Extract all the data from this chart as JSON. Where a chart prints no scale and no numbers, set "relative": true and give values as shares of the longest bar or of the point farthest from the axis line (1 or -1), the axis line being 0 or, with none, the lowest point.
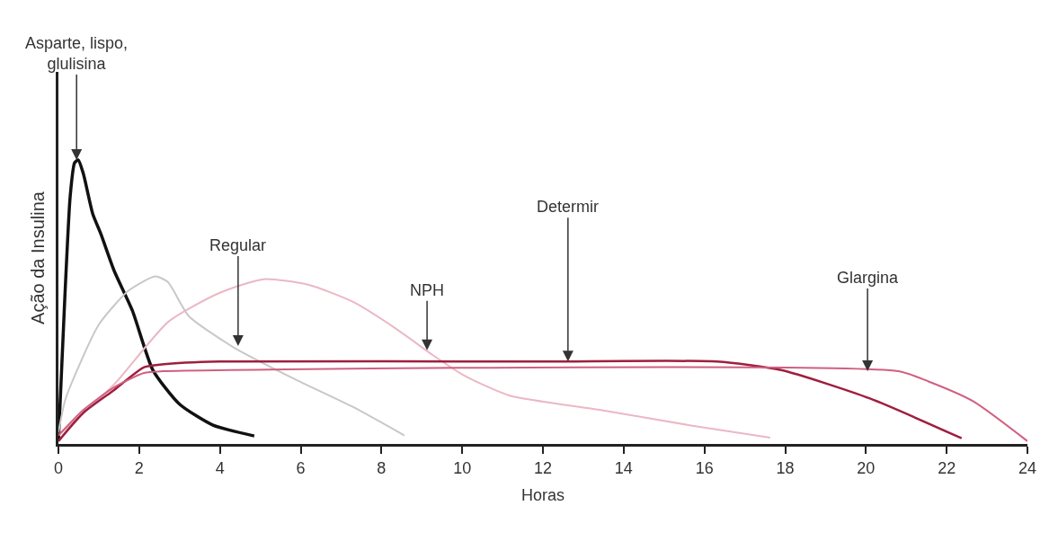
{
  "chart_data": {
    "type": "line",
    "relative": true,
    "xlabel": "Horas",
    "ylabel": "Ação da Insulina",
    "xlim": [
      0,
      24
    ],
    "xticks": [
      0,
      2,
      4,
      6,
      8,
      10,
      12,
      14,
      16,
      18,
      20,
      22,
      24
    ],
    "marker": "none",
    "line_style": "solid",
    "series": [
      {
        "color": "#111111",
        "x": [
          0,
          0.16,
          0.29,
          0.4,
          0.49,
          0.62,
          0.85,
          1.05,
          1.38,
          1.83,
          2.34,
          3.0,
          3.83,
          4.85
        ],
        "values": [
          0.01,
          0.52,
          0.87,
          0.99,
          1.0,
          0.95,
          0.81,
          0.74,
          0.61,
          0.47,
          0.26,
          0.14,
          0.066,
          0.028
        ]
      },
      {
        "color": "#c8c8c8",
        "x": [
          0,
          0.18,
          1.0,
          1.74,
          2.4,
          2.71,
          3.23,
          4.34,
          5.83,
          7.3,
          8.57
        ],
        "values": [
          0.04,
          0.16,
          0.42,
          0.54,
          0.59,
          0.57,
          0.45,
          0.34,
          0.23,
          0.13,
          0.03
        ]
      },
      {
        "color": "#eab8c4",
        "x": [
          0,
          1.38,
          2.72,
          3.96,
          5.08,
          6.2,
          7.3,
          8.42,
          9.3,
          10.06,
          11.18,
          13.4,
          15.63,
          17.63
        ],
        "values": [
          0.03,
          0.21,
          0.43,
          0.53,
          0.58,
          0.56,
          0.5,
          0.4,
          0.31,
          0.24,
          0.17,
          0.12,
          0.066,
          0.022
        ]
      },
      {
        "color": "#9e1f3e",
        "x": [
          0,
          0.62,
          1.38,
          2.12,
          2.56,
          4,
          12,
          16.3,
          17.9,
          20.1,
          22.37
        ],
        "values": [
          0.01,
          0.11,
          0.19,
          0.27,
          0.28,
          0.29,
          0.29,
          0.29,
          0.26,
          0.16,
          0.02
        ]
      },
      {
        "color": "#d06080",
        "x": [
          0,
          0.62,
          1.38,
          2.12,
          2.56,
          20.8,
          21.55,
          22.66,
          24
        ],
        "values": [
          0.03,
          0.12,
          0.2,
          0.25,
          0.256,
          0.256,
          0.22,
          0.15,
          0.01
        ]
      }
    ],
    "annotations": [
      {
        "text": "Asparte, lispo,\nglulisina",
        "x": 0.45,
        "y": 1.0
      },
      {
        "text": "Regular",
        "x": 4.45,
        "y": 0.345
      },
      {
        "text": "NPH",
        "x": 9.13,
        "y": 0.33
      },
      {
        "text": "Determir",
        "x": 12.62,
        "y": 0.29
      },
      {
        "text": "Glargina",
        "x": 20.04,
        "y": 0.256
      }
    ]
  }
}
